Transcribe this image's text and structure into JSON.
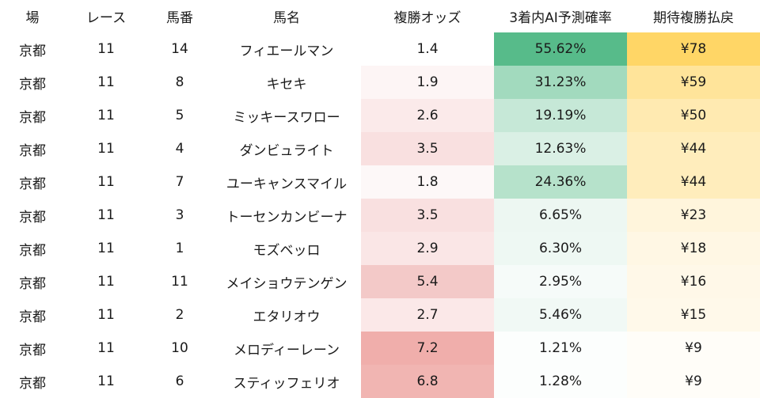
{
  "headers": [
    "場",
    "レース",
    "馬番",
    "馬名",
    "複勝オッズ",
    "3着内AI予測確率",
    "期待複勝払戻"
  ],
  "rows": [
    {
      "venue": "京都",
      "race": "11",
      "num": "14",
      "name": "フィエールマン",
      "odds": "1.4",
      "prob": "55.62%",
      "payout": "¥78",
      "odds_bg": "#ffffff",
      "prob_bg": "#57bb8a",
      "payout_bg": "#ffd666"
    },
    {
      "venue": "京都",
      "race": "11",
      "num": "8",
      "name": "キセキ",
      "odds": "1.9",
      "prob": "31.23%",
      "payout": "¥59",
      "odds_bg": "#fdf5f5",
      "prob_bg": "#a2dabe",
      "payout_bg": "#ffe49a"
    },
    {
      "venue": "京都",
      "race": "11",
      "num": "5",
      "name": "ミッキースワロー",
      "odds": "2.6",
      "prob": "19.19%",
      "payout": "¥50",
      "odds_bg": "#fbeaea",
      "prob_bg": "#c6e8d7",
      "payout_bg": "#ffeab1"
    },
    {
      "venue": "京都",
      "race": "11",
      "num": "4",
      "name": "ダンビュライト",
      "odds": "3.5",
      "prob": "12.63%",
      "payout": "¥44",
      "odds_bg": "#f9e0e0",
      "prob_bg": "#daf0e5",
      "payout_bg": "#ffedbc"
    },
    {
      "venue": "京都",
      "race": "11",
      "num": "7",
      "name": "ユーキャンスマイル",
      "odds": "1.8",
      "prob": "24.36%",
      "payout": "¥44",
      "odds_bg": "#fdf8f8",
      "prob_bg": "#b6e2cb",
      "payout_bg": "#ffedbc"
    },
    {
      "venue": "京都",
      "race": "11",
      "num": "3",
      "name": "トーセンカンビーナ",
      "odds": "3.5",
      "prob": "6.65%",
      "payout": "¥23",
      "odds_bg": "#f9e0e0",
      "prob_bg": "#edf7f2",
      "payout_bg": "#fff5dc"
    },
    {
      "venue": "京都",
      "race": "11",
      "num": "1",
      "name": "モズベッロ",
      "odds": "2.9",
      "prob": "6.30%",
      "payout": "¥18",
      "odds_bg": "#fae6e6",
      "prob_bg": "#eef8f3",
      "payout_bg": "#fff7e4"
    },
    {
      "venue": "京都",
      "race": "11",
      "num": "11",
      "name": "メイショウテンゲン",
      "odds": "5.4",
      "prob": "2.95%",
      "payout": "¥16",
      "odds_bg": "#f3c9c8",
      "prob_bg": "#f6fbf9",
      "payout_bg": "#fff8e8"
    },
    {
      "venue": "京都",
      "race": "11",
      "num": "2",
      "name": "エタリオウ",
      "odds": "2.7",
      "prob": "5.46%",
      "payout": "¥15",
      "odds_bg": "#fbe8e8",
      "prob_bg": "#f1f9f5",
      "payout_bg": "#fff9ea"
    },
    {
      "venue": "京都",
      "race": "11",
      "num": "10",
      "name": "メロディーレーン",
      "odds": "7.2",
      "prob": "1.21%",
      "payout": "¥9",
      "odds_bg": "#f0aeab",
      "prob_bg": "#fcfefd",
      "payout_bg": "#fffdf8"
    },
    {
      "venue": "京都",
      "race": "11",
      "num": "6",
      "name": "スティッフェリオ",
      "odds": "6.8",
      "prob": "1.28%",
      "payout": "¥9",
      "odds_bg": "#f1b5b2",
      "prob_bg": "#fcfefd",
      "payout_bg": "#fffdf8"
    }
  ]
}
